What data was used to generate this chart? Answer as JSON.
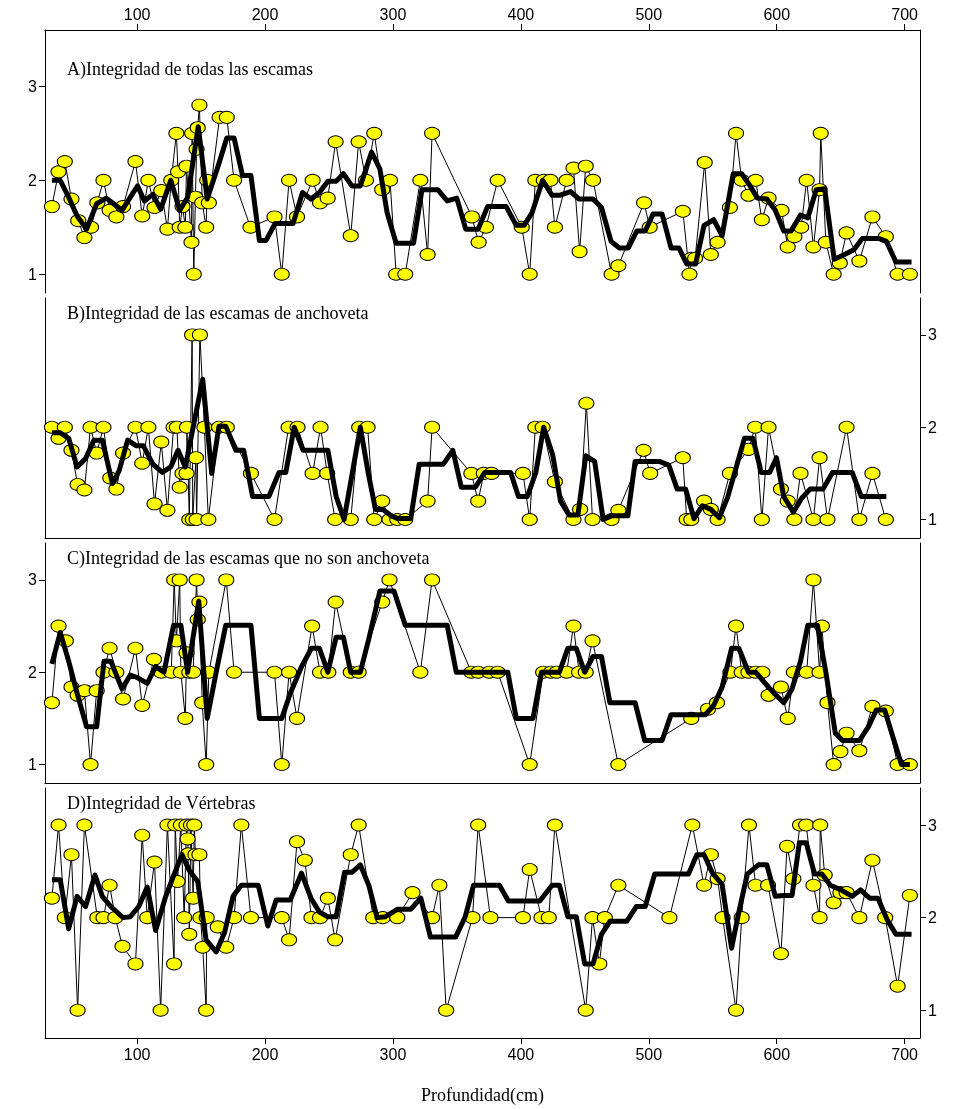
{
  "chart_data": [
    {
      "type": "line",
      "title": "A)Integridad de todas las escamas",
      "xlim": [
        28,
        712
      ],
      "xticks": [
        100,
        200,
        300,
        400,
        500,
        600,
        700
      ],
      "ylim": [
        0.8,
        3.6
      ],
      "yticks": [
        1,
        2,
        3
      ],
      "series": [
        {
          "color": "#ffff00",
          "marker": "circle",
          "x": [
            33.4,
            38.6,
            43.5,
            48.7,
            54,
            58.8,
            64,
            68.9,
            73.7,
            78.5,
            83.8,
            89,
            98.7,
            104,
            108.8,
            113.6,
            118.9,
            123.7,
            126.7,
            130.7,
            132,
            133.3,
            135.5,
            137.7,
            138.6,
            142.5,
            143,
            144.3,
            145.6,
            146.5,
            147.4,
            148.7,
            150.9,
            154,
            154.8,
            156.1,
            164.5,
            170.1,
            175.8,
            188.6,
            207.4,
            213.1,
            218.8,
            225,
            237.2,
            243,
            249,
            255.2,
            267,
            273.2,
            278.9,
            285.4,
            291.6,
            297.7,
            302.5,
            309.6,
            321.4,
            327.1,
            330.6,
            361.7,
            367,
            372.7,
            381.9,
            400.7,
            406.9,
            411.3,
            417.9,
            423.1,
            426.6,
            435.8,
            441.1,
            445.9,
            450.7,
            456.4,
            470.9,
            476.2,
            496.3,
            500.7,
            526.6,
            531.8,
            533.2,
            536.2,
            543.7,
            548.5,
            553.8,
            563.4,
            568.2,
            572.6,
            577.9,
            583.5,
            588.4,
            593.6,
            603.7,
            608.6,
            613.8,
            619.1,
            623.4,
            628.7,
            633.5,
            634.4,
            638.4,
            644.5,
            649.3,
            654.6,
            664.6,
            674.8,
            685.3,
            694.5,
            704.1
          ],
          "values": [
            1.72,
            2.09,
            2.2,
            1.8,
            1.57,
            1.39,
            1.5,
            1.76,
            2,
            1.68,
            1.61,
            1.72,
            2.2,
            1.62,
            2,
            1.71,
            1.89,
            1.48,
            2,
            2.5,
            2.09,
            1.5,
            1.72,
            1.5,
            2.15,
            1.34,
            2.5,
            1,
            1.82,
            2.33,
            2.56,
            2.8,
            1.76,
            1.5,
            2,
            1.76,
            2.67,
            2.67,
            2,
            1.5,
            1.61,
            1,
            2,
            1.61,
            2,
            1.76,
            1.81,
            2.41,
            1.41,
            2.41,
            2,
            2.5,
            1.9,
            2,
            1,
            1,
            2,
            1.21,
            2.5,
            1.61,
            1.34,
            1.5,
            2,
            1.5,
            1,
            2,
            2,
            2,
            1.5,
            2,
            2.13,
            1.24,
            2.15,
            2,
            1,
            1.09,
            1.76,
            1.5,
            1.67,
            1,
            1.17,
            1.17,
            2.19,
            1.21,
            1.34,
            1.71,
            2.5,
            2,
            1.84,
            2,
            1.58,
            1.81,
            1.68,
            1.29,
            1.4,
            1.5,
            2,
            1.29,
            1.9,
            2.5,
            1.34,
            1,
            1.12,
            1.44,
            1.14,
            1.61,
            1.4,
            1,
            1
          ]
        },
        {
          "color": "#000000",
          "marker": "none",
          "x": [
            33.4,
            39.9,
            46.5,
            53.1,
            60.5,
            68.4,
            75.9,
            81.6,
            88.2,
            94.7,
            100.4,
            105.7,
            112.3,
            118.4,
            126.3,
            133.3,
            139.5,
            147.8,
            154.8,
            164,
            170.1,
            175.8,
            182.4,
            189,
            195.6,
            200.8,
            207.9,
            221.9,
            229.3,
            235.9,
            242.5,
            249.1,
            255.6,
            261.3,
            267.9,
            274.5,
            283.3,
            289.8,
            295.5,
            302.5,
            316.1,
            322.7,
            335,
            342.4,
            349.9,
            356.9,
            366.6,
            374,
            388.5,
            396.4,
            402.5,
            408.6,
            417,
            424.4,
            430.1,
            438.9,
            445.5,
            456.4,
            463,
            470.5,
            477,
            484,
            490.6,
            497.2,
            503.3,
            510.4,
            517.4,
            523.5,
            529.6,
            536.6,
            543.2,
            550.7,
            557.3,
            566,
            572.6,
            579.2,
            584.9,
            592.3,
            598.9,
            605.5,
            611.2,
            618.6,
            624.3,
            630.9,
            637.5,
            644.9,
            651.5,
            660.3,
            666.9,
            680,
            685.7,
            693.2,
            705.4
          ],
          "values": [
            2,
            2,
            1.82,
            1.62,
            1.48,
            1.75,
            1.81,
            1.75,
            1.68,
            1.82,
            1.94,
            1.78,
            1.85,
            1.69,
            2,
            1.68,
            1.82,
            2.57,
            1.8,
            2.18,
            2.45,
            2.45,
            2.05,
            2.05,
            1.36,
            1.36,
            1.54,
            1.54,
            1.87,
            1.8,
            1.87,
            1.99,
            1.99,
            2.07,
            1.94,
            1.94,
            2.3,
            2.12,
            1.65,
            1.33,
            1.33,
            1.9,
            1.9,
            1.78,
            1.81,
            1.48,
            1.48,
            1.72,
            1.72,
            1.52,
            1.52,
            1.65,
            2,
            1.84,
            1.84,
            1.88,
            1.8,
            1.8,
            1.71,
            1.35,
            1.28,
            1.28,
            1.46,
            1.46,
            1.64,
            1.64,
            1.28,
            1.28,
            1.11,
            1.11,
            1.52,
            1.58,
            1.41,
            2.07,
            2.07,
            1.94,
            1.81,
            1.8,
            1.68,
            1.46,
            1.46,
            1.63,
            1.6,
            1.9,
            1.91,
            1.16,
            1.2,
            1.26,
            1.38,
            1.38,
            1.35,
            1.13,
            1.13
          ]
        }
      ]
    },
    {
      "type": "line",
      "title": "B)Integridad de las escamas de anchoveta",
      "xlim": [
        28,
        712
      ],
      "y2lim": [
        0.8,
        3.4
      ],
      "y2ticks": [
        1,
        2,
        3
      ],
      "tick_labels": "y",
      "series": [
        {
          "color": "#ffff00",
          "marker": "circle",
          "axis": "y2",
          "x": [
            33.4,
            38.6,
            43.5,
            48.7,
            53.5,
            58.8,
            63.6,
            68.4,
            73.7,
            79,
            83.8,
            89,
            98.7,
            104,
            108.8,
            113.6,
            118.9,
            123.7,
            128.5,
            131.1,
            133.3,
            135.5,
            138.6,
            139,
            140.8,
            143,
            143.5,
            146,
            146.5,
            149.1,
            152.6,
            155.7,
            164,
            170.1,
            189,
            207.4,
            218.4,
            225.4,
            237.2,
            243.4,
            248.6,
            254.8,
            267,
            273.6,
            280.2,
            285.4,
            291.6,
            297.3,
            303.4,
            309.6,
            327.1,
            330.6,
            361.3,
            366.6,
            371,
            377.1,
            401.6,
            406.9,
            411.3,
            417,
            426.6,
            441.1,
            446.3,
            451.2,
            456,
            470.9,
            476.2,
            495.9,
            501.1,
            526.6,
            529.6,
            533.2,
            543.2,
            548.5,
            553.8,
            563.4,
            577.9,
            583.1,
            588.4,
            593.6,
            603.3,
            608.6,
            613.8,
            618.6,
            628.7,
            633.5,
            639.7,
            654.6,
            664.6,
            674.8,
            685.3
          ],
          "values": [
            2,
            1.88,
            2,
            1.75,
            1.38,
            1.32,
            2,
            1.72,
            2,
            1.45,
            1.33,
            1.72,
            2,
            1.61,
            2,
            1.17,
            1.84,
            1.1,
            2,
            2,
            1.35,
            1.5,
            1.5,
            2,
            1,
            3,
            1,
            1.67,
            1,
            3,
            2,
            1,
            2,
            2,
            1.5,
            1,
            2,
            2,
            1.5,
            2,
            1.5,
            1,
            1,
            2,
            2,
            1,
            1.2,
            1,
            1,
            1,
            1.2,
            2,
            1.5,
            1.2,
            1.5,
            1.5,
            1.5,
            1,
            2,
            2,
            1.41,
            1,
            1.11,
            2.26,
            1,
            1,
            1.1,
            1.75,
            1.5,
            1.67,
            1,
            1,
            1.2,
            1.11,
            1,
            1.5,
            1.76,
            2,
            1,
            2,
            1.33,
            1.2,
            1,
            1.5,
            1,
            1.67,
            1,
            2,
            1,
            1.5,
            1
          ]
        },
        {
          "color": "#000000",
          "marker": "none",
          "axis": "y2",
          "x": [
            33.4,
            39.9,
            46.5,
            53.1,
            59.7,
            66.2,
            72.8,
            80.7,
            86,
            92.6,
            99.1,
            104.8,
            112.3,
            119.7,
            126.3,
            132,
            137.7,
            143.8,
            151.3,
            158.3,
            164,
            169.3,
            177.2,
            183.3,
            190.3,
            203,
            210.9,
            216.2,
            222.8,
            229.8,
            249.1,
            255.6,
            261.8,
            268.3,
            274.5,
            280.6,
            286.3,
            292,
            298.6,
            303.9,
            313.9,
            320.5,
            339.4,
            346.8,
            353.4,
            364.4,
            371.8,
            392,
            398.1,
            405.1,
            411.7,
            417.8,
            424.9,
            431,
            437.6,
            444.6,
            450.7,
            457.7,
            464.3,
            470.9,
            483.6,
            489.3,
            508.2,
            515.6,
            522.2,
            528.8,
            535.3,
            541.9,
            548.5,
            555.1,
            561.6,
            568.2,
            574.8,
            581.4,
            587.9,
            594.5,
            599.8,
            605.5,
            613,
            619.5,
            626.1,
            636.2,
            643.6,
            659,
            666,
            685.7
          ],
          "values": [
            1.94,
            1.94,
            1.88,
            1.57,
            1.66,
            1.86,
            1.86,
            1.39,
            1.53,
            1.86,
            1.8,
            1.8,
            1.6,
            1.51,
            1.57,
            1.75,
            1.57,
            2,
            2.52,
            1.5,
            2.01,
            2.01,
            1.75,
            1.75,
            1.25,
            1.25,
            1.51,
            1.51,
            2,
            1.75,
            1.75,
            1.25,
            1,
            1.51,
            2,
            1.51,
            1.11,
            1.11,
            1.04,
            1.01,
            1.01,
            1.6,
            1.6,
            1.75,
            1.35,
            1.35,
            1.51,
            1.51,
            1.25,
            1.25,
            1.51,
            2,
            1.7,
            1.2,
            1.05,
            1.05,
            1.69,
            1.63,
            1,
            1.04,
            1.04,
            1.63,
            1.63,
            1.59,
            1.33,
            1.33,
            1.01,
            1.15,
            1.11,
            1.02,
            1.24,
            1.56,
            1.88,
            1.88,
            1.51,
            1.51,
            1.67,
            1.25,
            1.08,
            1.23,
            1.33,
            1.33,
            1.51,
            1.51,
            1.25,
            1.25
          ]
        }
      ]
    },
    {
      "type": "line",
      "title": "C)Integridad de las escamas que no son anchoveta",
      "xlim": [
        28,
        712
      ],
      "ylim": [
        0.8,
        3.4
      ],
      "yticks": [
        1,
        2,
        3
      ],
      "tick_labels": "y",
      "series": [
        {
          "color": "#ffff00",
          "marker": "circle",
          "x": [
            33.4,
            38.6,
            44.3,
            48.7,
            53.5,
            58.8,
            63.6,
            68.4,
            73.7,
            78.5,
            83.8,
            89,
            98.7,
            104,
            113.2,
            118.9,
            126.7,
            129,
            130.7,
            133.3,
            134.2,
            137.7,
            138.6,
            140.8,
            143.8,
            146.5,
            147.4,
            148.7,
            150.9,
            154,
            156.1,
            169.7,
            175.8,
            207.4,
            213.1,
            218.8,
            225,
            236.8,
            243,
            249.5,
            255.2,
            267,
            273.2,
            291.6,
            297.3,
            321.4,
            330.6,
            361.3,
            366.6,
            375.3,
            381.9,
            406.9,
            417.4,
            423.5,
            427.9,
            435.8,
            441.1,
            445.5,
            450.7,
            456,
            476.2,
            533.2,
            546.3,
            553.3,
            563.8,
            568.2,
            572.6,
            577.9,
            583.5,
            588.8,
            593.6,
            603.3,
            608.6,
            613.4,
            623.4,
            628.7,
            633.5,
            635.3,
            639.7,
            644.5,
            649.8,
            654.6,
            664.6,
            674.8,
            685.3,
            694.5,
            704.1
          ],
          "values": [
            1.67,
            2.5,
            2.34,
            1.84,
            1.75,
            1.8,
            1,
            1.8,
            2,
            2.26,
            2,
            1.71,
            2.26,
            1.64,
            2.14,
            2,
            2,
            3,
            2.34,
            3,
            2,
            1.5,
            2.21,
            2,
            2,
            3,
            2.57,
            2.76,
            1.67,
            1,
            2,
            3,
            2,
            2,
            1,
            2,
            1.5,
            2.5,
            2,
            2,
            2.76,
            2,
            2,
            2.76,
            3,
            2,
            3,
            2,
            2,
            2,
            2,
            1,
            2,
            2,
            2,
            2,
            2.5,
            2,
            2,
            2.34,
            1,
            1.5,
            1.6,
            1.67,
            2,
            2.5,
            2,
            2,
            2,
            2,
            1.75,
            1.84,
            1.5,
            2,
            2,
            3,
            2,
            2.5,
            1.67,
            1,
            1.14,
            1.34,
            1.15,
            1.63,
            1.58,
            1,
            1
          ]
        },
        {
          "color": "#000000",
          "marker": "none",
          "x": [
            33.4,
            39.9,
            46.5,
            53.1,
            60.5,
            68.4,
            74.1,
            79.4,
            88.2,
            94.7,
            100.4,
            107.9,
            114.5,
            121,
            128.5,
            134.2,
            139.5,
            148.2,
            154.8,
            161.8,
            169.3,
            189,
            195.6,
            213.1,
            219.7,
            228.5,
            236.3,
            242.5,
            249.1,
            255.6,
            261.3,
            267,
            274.5,
            281.1,
            289.8,
            300.8,
            309.6,
            342.4,
            349.5,
            389.8,
            396.4,
            409.5,
            416.1,
            430.1,
            436.7,
            443.3,
            449.9,
            456.4,
            463,
            469.6,
            489.3,
            496.8,
            510.4,
            517.4,
            544.1,
            550.7,
            557.3,
            564.7,
            570.4,
            577.9,
            583.5,
            591,
            598,
            605.5,
            612,
            618.6,
            624.3,
            631.8,
            638.4,
            645.8,
            651.5,
            664.6,
            672.1,
            677.8,
            684.4,
            691,
            697.5,
            704.1
          ],
          "values": [
            2.09,
            2.43,
            2.12,
            1.77,
            1.41,
            1.41,
            2.12,
            2.12,
            1.82,
            1.97,
            1.94,
            1.88,
            2.06,
            2,
            2.51,
            2.51,
            2,
            2.77,
            1.5,
            2,
            2.51,
            2.51,
            1.5,
            1.5,
            1.77,
            2.06,
            2.26,
            2.26,
            2,
            2.38,
            2.38,
            2,
            2,
            2.36,
            2.88,
            2.88,
            2.51,
            2.51,
            2,
            2,
            1.5,
            1.5,
            2,
            2,
            2.26,
            2.26,
            2,
            2.17,
            2.17,
            1.67,
            1.67,
            1.26,
            1.26,
            1.54,
            1.54,
            1.64,
            1.84,
            2.26,
            2.26,
            2,
            2,
            1.88,
            1.77,
            1.67,
            1.82,
            2.12,
            2.51,
            2.51,
            2,
            1.34,
            1.26,
            1.26,
            1.42,
            1.59,
            1.59,
            1.29,
            1,
            1
          ]
        }
      ]
    },
    {
      "type": "line",
      "title": "D)Integridad de Vértebras",
      "xlabel": "Profundidad(cm)",
      "xlim": [
        28,
        712
      ],
      "xticks": [
        100,
        200,
        300,
        400,
        500,
        600,
        700
      ],
      "y2lim": [
        0.7,
        3.4
      ],
      "y2ticks": [
        1,
        2,
        3
      ],
      "series": [
        {
          "color": "#ffff00",
          "marker": "circle",
          "axis": "y2",
          "x": [
            33.4,
            38.6,
            43.5,
            48.7,
            53.5,
            58.8,
            68.9,
            73.7,
            78.5,
            82.9,
            88.6,
            98.7,
            104,
            107.9,
            113.6,
            118.4,
            123.7,
            128.9,
            129.8,
            131.6,
            134.2,
            136.8,
            138.6,
            139.5,
            139.9,
            140.8,
            142.1,
            143.8,
            144.7,
            145.6,
            148.7,
            149.5,
            151.3,
            154,
            154.4,
            163.1,
            169.7,
            175.8,
            181.5,
            189,
            213.1,
            218.8,
            225,
            231.1,
            236.3,
            243,
            249.1,
            254.8,
            267,
            273.2,
            284.6,
            292,
            303.4,
            315.3,
            330.6,
            336.3,
            341.6,
            362.2,
            366.6,
            376.2,
            401.6,
            406.9,
            416.1,
            421.8,
            426.6,
            450.7,
            456,
            461.3,
            465.6,
            476.2,
            516.1,
            534,
            543.2,
            548.5,
            553.8,
            557.7,
            568.2,
            572.6,
            578.3,
            583.5,
            593.2,
            603.3,
            608.1,
            613,
            618.2,
            623,
            628.7,
            633.5,
            634,
            637.5,
            644.5,
            649.8,
            654.6,
            664.6,
            674.8,
            684.8,
            694.5,
            704.1
          ],
          "values": [
            2.21,
            3,
            2,
            2.68,
            1,
            3,
            2,
            2,
            2.35,
            2,
            1.69,
            1.5,
            2.89,
            2,
            2.6,
            1,
            3,
            1.5,
            3,
            2.39,
            3,
            2,
            3,
            2.85,
            2.69,
            1.82,
            3,
            2.21,
            3,
            2.68,
            2.68,
            2,
            1.68,
            1,
            2,
            1.9,
            1.68,
            2,
            3,
            2,
            2,
            1.76,
            2.82,
            2.62,
            2,
            2,
            2.21,
            1.76,
            2.68,
            3,
            2,
            2,
            2,
            2.27,
            2,
            2.35,
            1,
            2,
            3,
            2,
            2,
            2.52,
            2,
            2,
            3,
            1,
            2,
            1.5,
            2,
            2.35,
            2,
            3,
            2.35,
            2.68,
            2.42,
            2,
            1,
            2,
            3,
            2.35,
            2.35,
            1.61,
            2.77,
            2.42,
            3,
            3,
            2.35,
            2,
            3,
            2.46,
            2.16,
            2.27,
            2.27,
            2,
            2.62,
            2,
            1.26,
            2.24
          ]
        },
        {
          "color": "#000000",
          "marker": "none",
          "axis": "y2",
          "x": [
            33.4,
            39.9,
            46.5,
            53.1,
            59.7,
            67.1,
            72.8,
            79.4,
            89,
            94.7,
            101.3,
            107.9,
            114.5,
            121.9,
            128.5,
            135.1,
            140.8,
            147.4,
            153.9,
            161.8,
            168.4,
            175,
            181.5,
            194.7,
            202.2,
            208.7,
            219.7,
            228.5,
            235.9,
            242.5,
            249.1,
            255.6,
            262.2,
            267.9,
            274.5,
            281.1,
            287.6,
            294.2,
            303.4,
            313.9,
            321.8,
            329.3,
            349,
            356.5,
            363,
            383.2,
            390.2,
            414.8,
            424.4,
            430.1,
            436.7,
            443.3,
            449.9,
            456.4,
            463,
            469.6,
            482.7,
            490.2,
            497.2,
            504.6,
            531,
            537.5,
            543.2,
            549.8,
            557.3,
            564.7,
            570.4,
            577,
            585.7,
            592.3,
            598.9,
            605.5,
            612,
            617.7,
            623,
            629.6,
            635.3,
            641.9,
            650.2,
            659,
            665.5,
            672.6,
            679.1,
            686.6,
            693.2,
            705.4
          ],
          "values": [
            2.41,
            2.41,
            1.88,
            2.23,
            2.12,
            2.46,
            2.23,
            2.12,
            2,
            2.01,
            2.12,
            2.33,
            1.86,
            2.21,
            2.45,
            2.68,
            2.51,
            2.39,
            1.76,
            1.63,
            1.84,
            2.23,
            2.35,
            2.35,
            1.91,
            2.19,
            2.19,
            2.48,
            2.21,
            2.06,
            2.01,
            2.01,
            2.49,
            2.49,
            2.57,
            2.35,
            2,
            2.01,
            2.09,
            2.09,
            2.21,
            1.79,
            1.79,
            2.01,
            2.35,
            2.35,
            2.18,
            2.18,
            2.35,
            2.35,
            2.01,
            2.01,
            1.5,
            1.5,
            1.82,
            1.96,
            1.96,
            2.12,
            2.12,
            2.47,
            2.47,
            2.68,
            2.68,
            2.48,
            2.36,
            1.67,
            2.06,
            2.47,
            2.57,
            2.57,
            2.23,
            2.24,
            2.24,
            2.81,
            2.81,
            2.47,
            2.47,
            2.35,
            2.3,
            2.23,
            2.3,
            2.21,
            2.21,
            1.97,
            1.82,
            1.82
          ]
        }
      ]
    }
  ]
}
